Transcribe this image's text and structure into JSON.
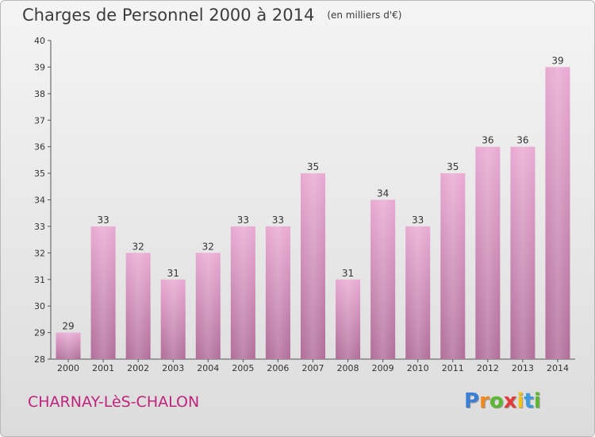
{
  "title": "Charges de Personnel 2000 à 2014",
  "unit": "(en milliers d'€)",
  "commune": "CHARNAY-LèS-CHALON",
  "logo": {
    "letters": [
      "P",
      "r",
      "o",
      "x",
      "i",
      "t",
      "i"
    ],
    "colors": [
      "#3a7fd5",
      "#f08a1c",
      "#5cb82e",
      "#e43a3a",
      "#f0c21c",
      "#3a9be0",
      "#5cb82e"
    ]
  },
  "colors": {
    "bar_top": "#e9a9d2",
    "bar_bottom": "#b06d99",
    "title": "#3c3c3c",
    "commune": "#c0247e"
  },
  "chart_data": {
    "type": "bar",
    "categories": [
      "2000",
      "2001",
      "2002",
      "2003",
      "2004",
      "2005",
      "2006",
      "2007",
      "2008",
      "2009",
      "2010",
      "2011",
      "2012",
      "2013",
      "2014"
    ],
    "values": [
      29,
      33,
      32,
      31,
      32,
      33,
      33,
      35,
      31,
      34,
      33,
      35,
      36,
      36,
      39
    ],
    "title": "Charges de Personnel 2000 à 2014",
    "ylim": [
      28,
      40
    ],
    "yticks": [
      "28",
      "29",
      "30",
      "31",
      "32",
      "33",
      "34",
      "35",
      "36",
      "37",
      "38",
      "39",
      "40"
    ],
    "grid": false,
    "data_labels": true
  }
}
